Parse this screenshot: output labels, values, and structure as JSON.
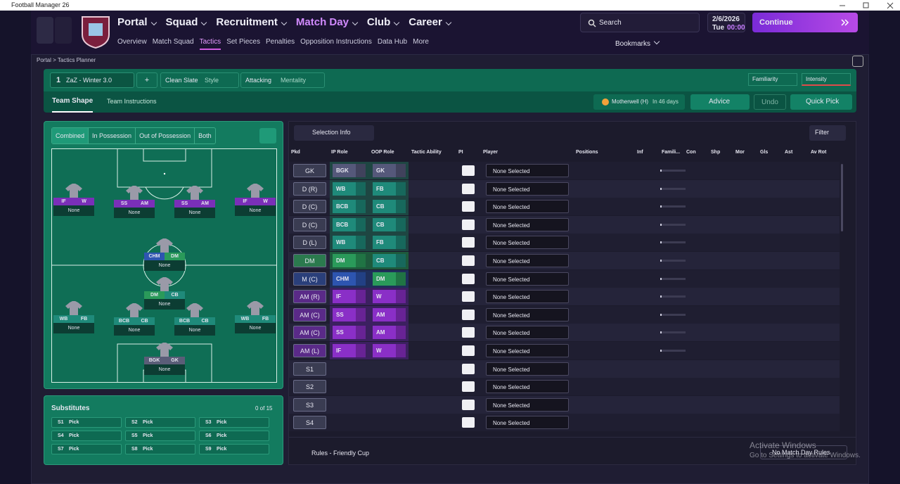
{
  "window": {
    "title": "Football Manager 26"
  },
  "nav": {
    "menus": [
      "Portal",
      "Squad",
      "Recruitment",
      "Match Day",
      "Club",
      "Career"
    ],
    "submenus": [
      "Overview",
      "Match Squad",
      "Tactics",
      "Set Pieces",
      "Penalties",
      "Opposition Instructions",
      "Data Hub",
      "More"
    ],
    "search": "Search",
    "date": "2/6/2026",
    "day": "Tue",
    "time": "00:00",
    "continue": "Continue",
    "bookmarks": "Bookmarks"
  },
  "breadcrumb": [
    "Portal",
    "Tactics Planner"
  ],
  "toolbar": {
    "tactic_number": "1",
    "tactic": "ZaZ - Winter 3.0",
    "add": "+",
    "style_value": "Clean Slate",
    "style_label": "Style",
    "mentality_value": "Attacking",
    "mentality_label": "Mentality",
    "familiarity": "Familiarity",
    "intensity": "Intensity"
  },
  "tabs": [
    "Team Shape",
    "Team Instructions"
  ],
  "fixture": {
    "opponent": "Motherwell (H)",
    "days": "In 46 days"
  },
  "actions": {
    "advice": "Advice",
    "undo": "Undo",
    "quick_pick": "Quick Pick"
  },
  "pitch_tabs": [
    "Combined",
    "In Possession",
    "Out of Possession",
    "Both"
  ],
  "pitch_players": [
    {
      "ip": "IF",
      "oop": "W",
      "name": "None"
    },
    {
      "ip": "SS",
      "oop": "AM",
      "name": "None"
    },
    {
      "ip": "SS",
      "oop": "AM",
      "name": "None"
    },
    {
      "ip": "IF",
      "oop": "W",
      "name": "None"
    },
    {
      "ip": "CHM",
      "oop": "DM",
      "name": "None"
    },
    {
      "ip": "DM",
      "oop": "CB",
      "name": "None"
    },
    {
      "ip": "WB",
      "oop": "FB",
      "name": "None"
    },
    {
      "ip": "BCB",
      "oop": "CB",
      "name": "None"
    },
    {
      "ip": "BCB",
      "oop": "CB",
      "name": "None"
    },
    {
      "ip": "WB",
      "oop": "FB",
      "name": "None"
    },
    {
      "ip": "BGK",
      "oop": "GK",
      "name": "None"
    }
  ],
  "substitutes": {
    "title": "Substitutes",
    "count": "0 of 15",
    "slots": [
      {
        "slot": "S1",
        "value": "Pick"
      },
      {
        "slot": "S2",
        "value": "Pick"
      },
      {
        "slot": "S3",
        "value": "Pick"
      },
      {
        "slot": "S4",
        "value": "Pick"
      },
      {
        "slot": "S5",
        "value": "Pick"
      },
      {
        "slot": "S6",
        "value": "Pick"
      },
      {
        "slot": "S7",
        "value": "Pick"
      },
      {
        "slot": "S8",
        "value": "Pick"
      },
      {
        "slot": "S9",
        "value": "Pick"
      }
    ]
  },
  "table": {
    "selection_info": "Selection Info",
    "filter": "Filter",
    "columns": [
      "Pkd",
      "IP Role",
      "OOP Role",
      "Tactic Ability",
      "PI",
      "Player",
      "Positions",
      "Inf",
      "Famili...",
      "Con",
      "Shp",
      "Mor",
      "Gls",
      "Ast",
      "Av Rot"
    ],
    "rows": [
      {
        "pos": "GK",
        "ip": "BGK",
        "oop": "GK",
        "player": "None Selected"
      },
      {
        "pos": "D (R)",
        "ip": "WB",
        "oop": "FB",
        "player": "None Selected"
      },
      {
        "pos": "D (C)",
        "ip": "BCB",
        "oop": "CB",
        "player": "None Selected"
      },
      {
        "pos": "D (C)",
        "ip": "BCB",
        "oop": "CB",
        "player": "None Selected"
      },
      {
        "pos": "D (L)",
        "ip": "WB",
        "oop": "FB",
        "player": "None Selected"
      },
      {
        "pos": "DM",
        "ip": "DM",
        "oop": "CB",
        "player": "None Selected"
      },
      {
        "pos": "M (C)",
        "ip": "CHM",
        "oop": "DM",
        "player": "None Selected"
      },
      {
        "pos": "AM (R)",
        "ip": "IF",
        "oop": "W",
        "player": "None Selected"
      },
      {
        "pos": "AM (C)",
        "ip": "SS",
        "oop": "AM",
        "player": "None Selected"
      },
      {
        "pos": "AM (C)",
        "ip": "SS",
        "oop": "AM",
        "player": "None Selected"
      },
      {
        "pos": "AM (L)",
        "ip": "IF",
        "oop": "W",
        "player": "None Selected"
      },
      {
        "pos": "S1",
        "player": "None Selected"
      },
      {
        "pos": "S2",
        "player": "None Selected"
      },
      {
        "pos": "S3",
        "player": "None Selected"
      },
      {
        "pos": "S4",
        "player": "None Selected"
      }
    ]
  },
  "footer": {
    "rules": "Rules - Friendly Cup",
    "match_day_rules": "No Match Day Rules"
  },
  "watermark": {
    "title": "Activate Windows",
    "text": "Go to Settings to activate Windows."
  }
}
